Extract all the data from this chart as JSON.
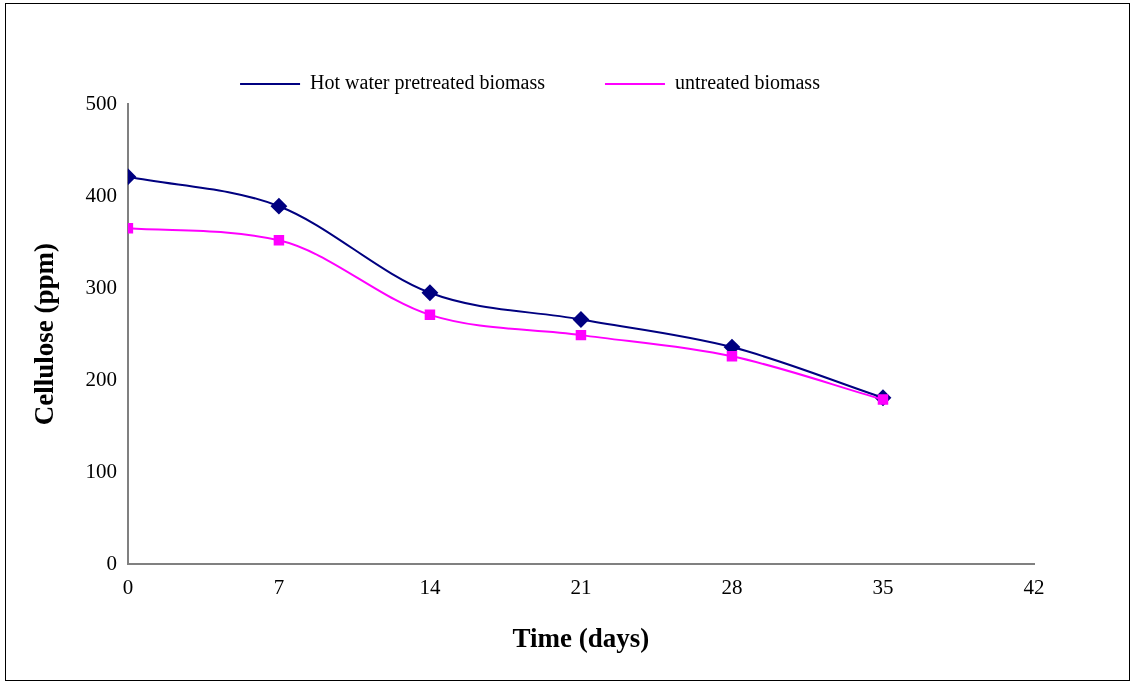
{
  "chart_data": {
    "type": "line",
    "xlabel": "Time (days)",
    "ylabel": "Cellulose (ppm)",
    "x": [
      0,
      7,
      14,
      21,
      28,
      35
    ],
    "series": [
      {
        "name": "Hot water pretreated biomass",
        "color": "#000080",
        "marker": "diamond",
        "values": [
          421,
          389,
          295,
          266,
          236,
          181
        ]
      },
      {
        "name": "untreated biomass",
        "color": "#ff00ff",
        "marker": "square",
        "values": [
          365,
          352,
          271,
          249,
          226,
          179
        ]
      }
    ],
    "xlim": [
      0,
      42
    ],
    "xticks": [
      0,
      7,
      14,
      21,
      28,
      35,
      42
    ],
    "ylim": [
      0,
      500
    ],
    "yticks": [
      0,
      100,
      200,
      300,
      400,
      500
    ],
    "grid": false,
    "legend": "top",
    "line_style": "solid"
  }
}
